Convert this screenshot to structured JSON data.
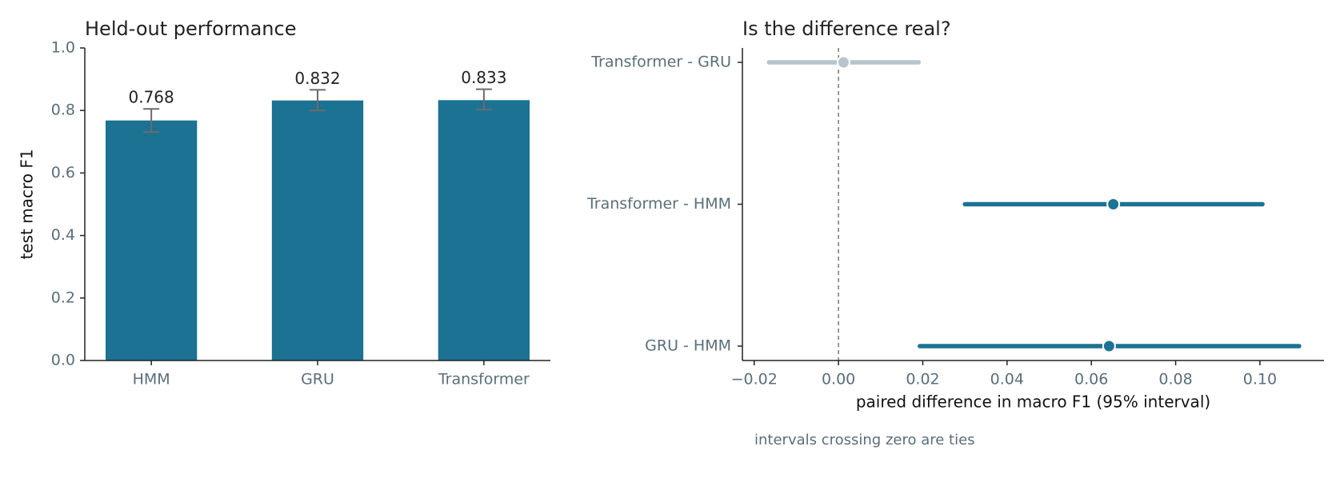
{
  "chart_data": [
    {
      "type": "bar",
      "title": "Held-out performance",
      "ylabel": "test macro F1",
      "categories": [
        "HMM",
        "GRU",
        "Transformer"
      ],
      "values": [
        0.768,
        0.832,
        0.833
      ],
      "ci_low": [
        0.731,
        0.8,
        0.803
      ],
      "ci_high": [
        0.805,
        0.866,
        0.868
      ],
      "color": "#1b7293",
      "error_color": "#6b6b6b",
      "ylim": [
        0,
        1
      ],
      "yticks": [
        {
          "value": 0,
          "label": "0.0"
        },
        0.2,
        0.4,
        0.6,
        0.8,
        {
          "value": 1,
          "label": "1.0"
        }
      ]
    },
    {
      "type": "interval",
      "title": "Is the difference real?",
      "xlabel": "paired difference in macro F1 (95% interval)",
      "note": "intervals crossing zero are ties",
      "categories": [
        "Transformer - GRU",
        "Transformer - HMM",
        "GRU - HMM"
      ],
      "values": [
        0.0012,
        0.0652,
        0.0642
      ],
      "ci_low": [
        -0.0165,
        0.03,
        0.0193
      ],
      "ci_high": [
        0.019,
        0.1006,
        0.1093
      ],
      "colors": [
        "#b8c4cc",
        "#1b7293",
        "#1b7293"
      ],
      "refline": 0,
      "xlim": [
        -0.0228,
        0.1152
      ],
      "xticks": [
        {
          "value": -0.02,
          "label": "−0.02"
        },
        {
          "value": 0,
          "label": "0.00"
        },
        0.02,
        0.04,
        0.06,
        0.08,
        {
          "value": 0.1,
          "label": "0.10"
        }
      ]
    }
  ]
}
